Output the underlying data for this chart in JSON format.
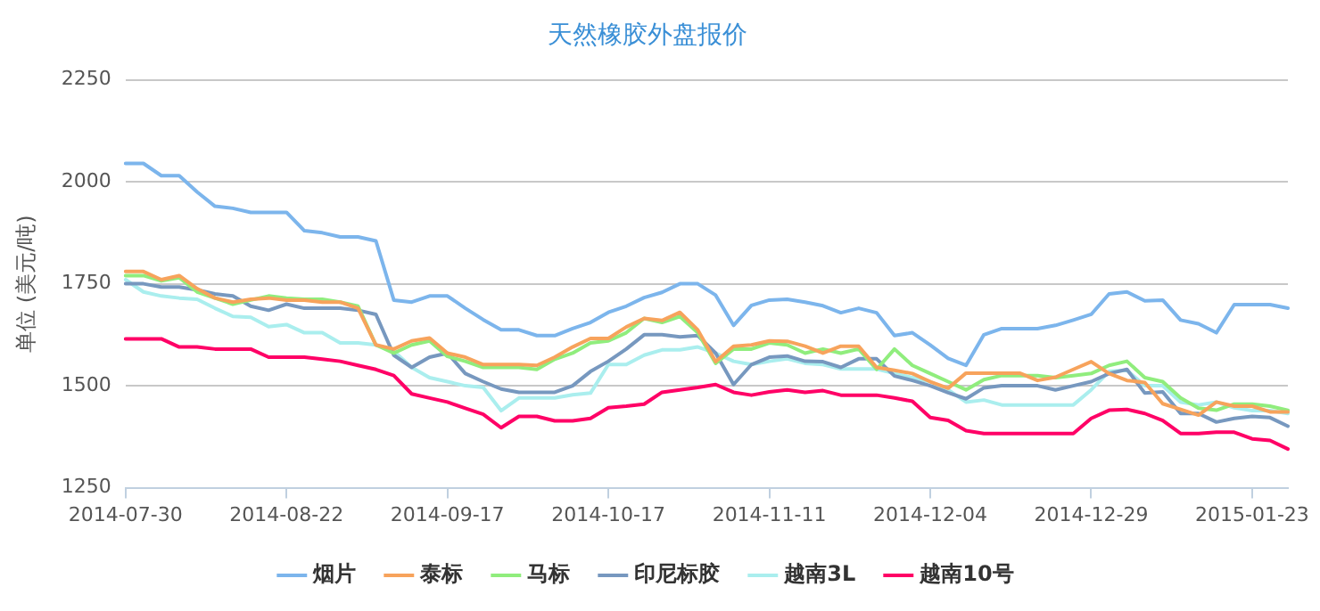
{
  "chart_data": {
    "type": "line",
    "title": "天然橡胶外盘报价",
    "ylabel": "单位 (美元/吨)",
    "categories": [
      "2014-07-30",
      null,
      null,
      null,
      null,
      null,
      null,
      null,
      null,
      "2014-08-22",
      null,
      null,
      null,
      null,
      null,
      null,
      null,
      null,
      "2014-09-17",
      null,
      null,
      null,
      null,
      null,
      null,
      null,
      null,
      "2014-10-17",
      null,
      null,
      null,
      null,
      null,
      null,
      null,
      null,
      "2014-11-11",
      null,
      null,
      null,
      null,
      null,
      null,
      null,
      null,
      "2014-12-04",
      null,
      null,
      null,
      null,
      null,
      null,
      null,
      null,
      "2014-12-29",
      null,
      null,
      null,
      null,
      null,
      null,
      null,
      null,
      "2015-01-23",
      null,
      null
    ],
    "ylim": [
      1250,
      2250
    ],
    "yticks": [
      1250,
      1500,
      1750,
      2000,
      2250
    ],
    "grid": "y",
    "legend": "bottom",
    "marker": "none",
    "line_style": "solid",
    "series": [
      {
        "name": "烟片",
        "color": "#7cb5ec",
        "values": [
          2045,
          2045,
          2015,
          2015,
          1975,
          1940,
          1935,
          1925,
          1925,
          1925,
          1880,
          1875,
          1865,
          1865,
          1855,
          1710,
          1705,
          1720,
          1720,
          1690,
          1662,
          1637,
          1637,
          1623,
          1623,
          1640,
          1655,
          1680,
          1695,
          1716,
          1729,
          1750,
          1750,
          1722,
          1648,
          1697,
          1710,
          1712,
          1705,
          1696,
          1679,
          1690,
          1679,
          1623,
          1630,
          1600,
          1567,
          1550,
          1625,
          1640,
          1640,
          1640,
          1648,
          1661,
          1675,
          1725,
          1730,
          1708,
          1710,
          1661,
          1652,
          1630,
          1699,
          1699,
          1699,
          1690
        ]
      },
      {
        "name": "泰标",
        "color": "#f7a35c",
        "values": [
          1780,
          1780,
          1760,
          1770,
          1738,
          1715,
          1705,
          1712,
          1715,
          1710,
          1710,
          1705,
          1705,
          1690,
          1600,
          1590,
          1610,
          1617,
          1580,
          1570,
          1552,
          1552,
          1552,
          1550,
          1570,
          1595,
          1616,
          1616,
          1644,
          1665,
          1660,
          1680,
          1637,
          1559,
          1597,
          1600,
          1610,
          1609,
          1597,
          1580,
          1597,
          1597,
          1545,
          1538,
          1530,
          1510,
          1494,
          1531,
          1531,
          1531,
          1531,
          1513,
          1521,
          1540,
          1559,
          1530,
          1513,
          1508,
          1456,
          1442,
          1428,
          1460,
          1450,
          1450,
          1436,
          1436
        ]
      },
      {
        "name": "马标",
        "color": "#90ed7d",
        "values": [
          1770,
          1770,
          1757,
          1765,
          1730,
          1715,
          1700,
          1710,
          1720,
          1715,
          1712,
          1712,
          1705,
          1695,
          1600,
          1580,
          1600,
          1610,
          1572,
          1560,
          1545,
          1545,
          1545,
          1540,
          1565,
          1580,
          1605,
          1610,
          1630,
          1665,
          1655,
          1670,
          1630,
          1555,
          1590,
          1590,
          1605,
          1600,
          1580,
          1590,
          1580,
          1590,
          1540,
          1590,
          1550,
          1530,
          1510,
          1490,
          1515,
          1525,
          1525,
          1525,
          1520,
          1525,
          1530,
          1550,
          1560,
          1520,
          1510,
          1470,
          1445,
          1440,
          1455,
          1455,
          1450,
          1440
        ]
      },
      {
        "name": "印尼标胶",
        "color": "#7798bf",
        "values": [
          1750,
          1750,
          1742,
          1742,
          1735,
          1725,
          1720,
          1695,
          1685,
          1700,
          1690,
          1690,
          1690,
          1685,
          1675,
          1575,
          1545,
          1570,
          1580,
          1530,
          1510,
          1492,
          1484,
          1484,
          1484,
          1500,
          1535,
          1560,
          1590,
          1625,
          1625,
          1620,
          1623,
          1580,
          1503,
          1552,
          1570,
          1573,
          1560,
          1559,
          1545,
          1566,
          1566,
          1524,
          1513,
          1500,
          1483,
          1468,
          1495,
          1500,
          1500,
          1500,
          1490,
          1500,
          1510,
          1530,
          1540,
          1482,
          1485,
          1432,
          1432,
          1411,
          1420,
          1425,
          1422,
          1401
        ]
      },
      {
        "name": "越南3L",
        "color": "#aaeeee",
        "values": [
          1760,
          1730,
          1720,
          1715,
          1712,
          1690,
          1670,
          1668,
          1645,
          1650,
          1630,
          1630,
          1605,
          1605,
          1600,
          1585,
          1545,
          1520,
          1510,
          1500,
          1496,
          1439,
          1470,
          1470,
          1470,
          1478,
          1482,
          1552,
          1552,
          1575,
          1588,
          1588,
          1595,
          1580,
          1560,
          1552,
          1560,
          1566,
          1555,
          1552,
          1541,
          1541,
          1541,
          1530,
          1520,
          1510,
          1490,
          1460,
          1465,
          1453,
          1453,
          1453,
          1453,
          1453,
          1490,
          1535,
          1538,
          1500,
          1500,
          1460,
          1453,
          1460,
          1446,
          1439,
          1439,
          1432
        ]
      },
      {
        "name": "越南10号",
        "color": "#ff0066",
        "values": [
          1615,
          1615,
          1615,
          1595,
          1595,
          1590,
          1590,
          1590,
          1570,
          1570,
          1570,
          1565,
          1560,
          1550,
          1540,
          1525,
          1480,
          1470,
          1460,
          1445,
          1430,
          1397,
          1425,
          1425,
          1414,
          1414,
          1420,
          1446,
          1450,
          1455,
          1484,
          1490,
          1496,
          1503,
          1484,
          1477,
          1485,
          1490,
          1484,
          1488,
          1477,
          1477,
          1477,
          1470,
          1462,
          1422,
          1415,
          1390,
          1383,
          1383,
          1383,
          1383,
          1383,
          1383,
          1420,
          1440,
          1442,
          1432,
          1415,
          1383,
          1383,
          1386,
          1386,
          1370,
          1366,
          1345
        ]
      }
    ]
  }
}
